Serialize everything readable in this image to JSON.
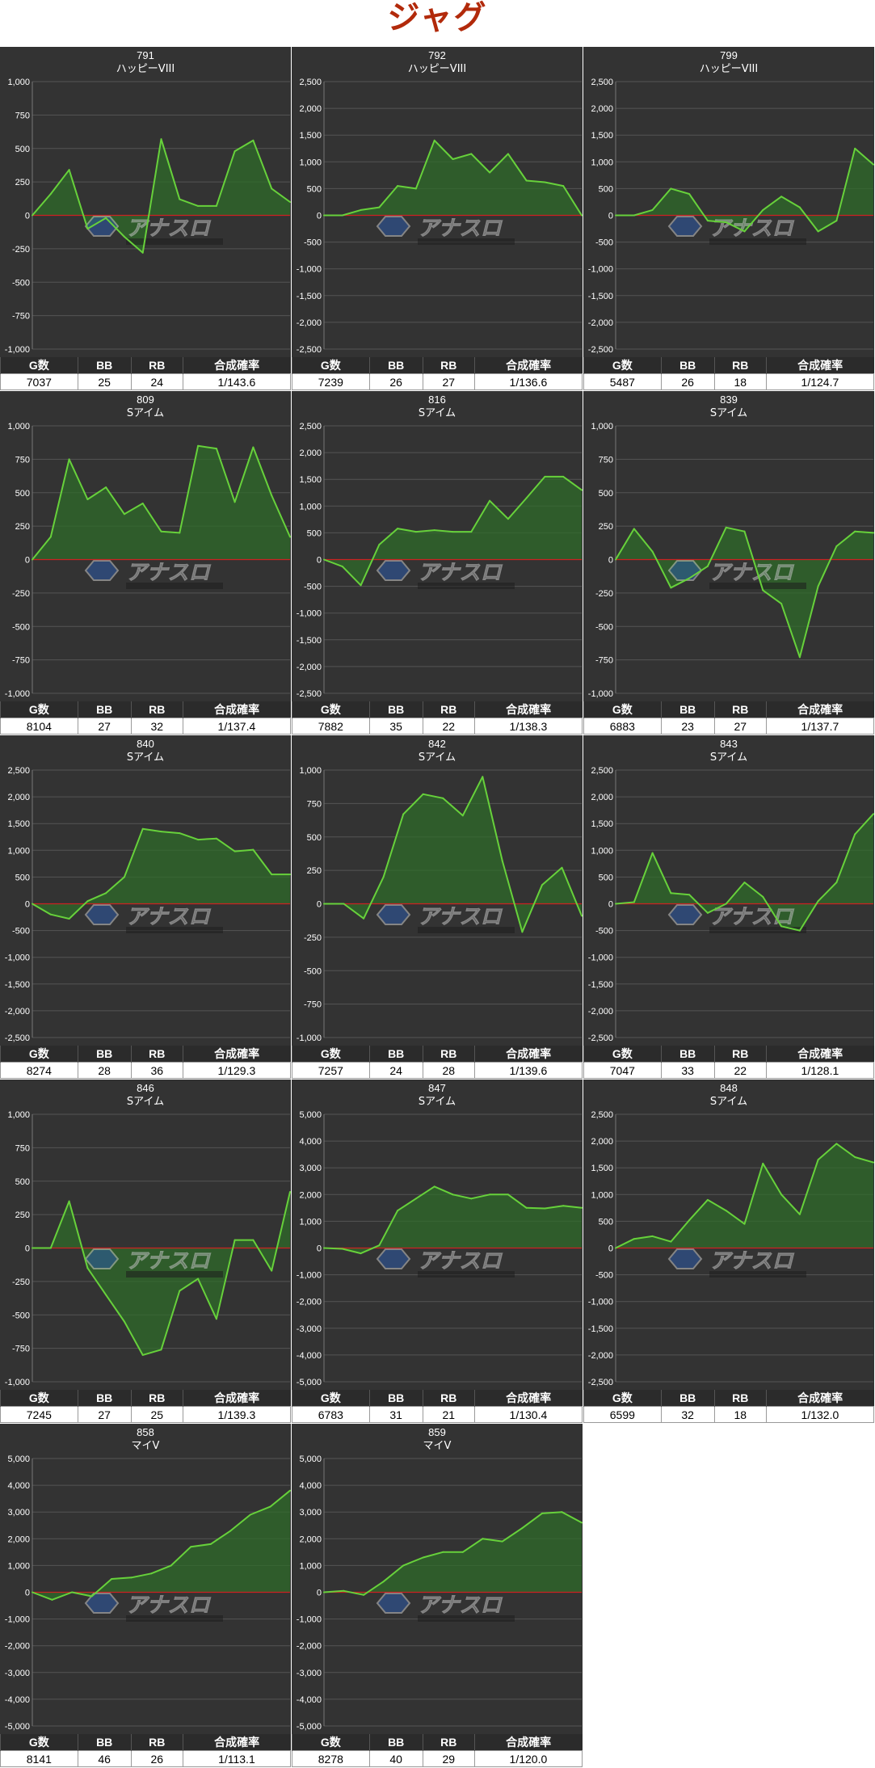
{
  "page_title": "ジャグ",
  "table_headers": [
    "G数",
    "BB",
    "RB",
    "合成確率"
  ],
  "colors": {
    "plot_bg": "#333333",
    "line": "#67d13b",
    "fill": "#2f6b2a",
    "zero_line": "#cc2222",
    "grid": "#555555"
  },
  "chart_data": [
    {
      "type": "area",
      "title": "791",
      "subtitle": "ハッピーVIII",
      "ylim": [
        -1000,
        1000
      ],
      "ytick_step": 250,
      "values": [
        0,
        160,
        340,
        -100,
        -20,
        -160,
        -280,
        570,
        120,
        70,
        70,
        480,
        560,
        200,
        100
      ],
      "stats": [
        "7037",
        "25",
        "24",
        "1/143.6"
      ]
    },
    {
      "type": "area",
      "title": "792",
      "subtitle": "ハッピーVIII",
      "ylim": [
        -2500,
        2500
      ],
      "ytick_step": 500,
      "values": [
        0,
        0,
        100,
        150,
        550,
        500,
        1400,
        1050,
        1150,
        800,
        1150,
        650,
        620,
        550,
        0
      ],
      "stats": [
        "7239",
        "26",
        "27",
        "1/136.6"
      ]
    },
    {
      "type": "area",
      "title": "799",
      "subtitle": "ハッピーVIII",
      "ylim": [
        -2500,
        2500
      ],
      "ytick_step": 500,
      "values": [
        0,
        0,
        100,
        500,
        400,
        -100,
        -130,
        -300,
        100,
        350,
        150,
        -300,
        -100,
        1250,
        950
      ],
      "stats": [
        "5487",
        "26",
        "18",
        "1/124.7"
      ]
    },
    {
      "type": "area",
      "title": "809",
      "subtitle": "Sアイム",
      "ylim": [
        -1000,
        1000
      ],
      "ytick_step": 250,
      "values": [
        0,
        170,
        750,
        450,
        540,
        340,
        420,
        210,
        200,
        850,
        830,
        430,
        840,
        480,
        170
      ],
      "stats": [
        "8104",
        "27",
        "32",
        "1/137.4"
      ]
    },
    {
      "type": "area",
      "title": "816",
      "subtitle": "Sアイム",
      "ylim": [
        -2500,
        2500
      ],
      "ytick_step": 500,
      "values": [
        0,
        -130,
        -480,
        280,
        580,
        520,
        550,
        520,
        520,
        1100,
        760,
        1150,
        1550,
        1550,
        1300
      ],
      "stats": [
        "7882",
        "35",
        "22",
        "1/138.3"
      ]
    },
    {
      "type": "area",
      "title": "839",
      "subtitle": "Sアイム",
      "ylim": [
        -1000,
        1000
      ],
      "ytick_step": 250,
      "values": [
        0,
        230,
        60,
        -210,
        -140,
        -50,
        240,
        210,
        -230,
        -330,
        -730,
        -200,
        100,
        210,
        200
      ],
      "stats": [
        "6883",
        "23",
        "27",
        "1/137.7"
      ]
    },
    {
      "type": "area",
      "title": "840",
      "subtitle": "Sアイム",
      "ylim": [
        -2500,
        2500
      ],
      "ytick_step": 500,
      "values": [
        0,
        -200,
        -280,
        50,
        200,
        500,
        1400,
        1350,
        1320,
        1200,
        1220,
        980,
        1010,
        550,
        550
      ],
      "stats": [
        "8274",
        "28",
        "36",
        "1/129.3"
      ]
    },
    {
      "type": "area",
      "title": "842",
      "subtitle": "Sアイム",
      "ylim": [
        -1000,
        1000
      ],
      "ytick_step": 250,
      "values": [
        0,
        0,
        -110,
        200,
        670,
        820,
        790,
        660,
        950,
        320,
        -210,
        140,
        270,
        -90
      ],
      "stats": [
        "7257",
        "24",
        "28",
        "1/139.6"
      ]
    },
    {
      "type": "area",
      "title": "843",
      "subtitle": "Sアイム",
      "ylim": [
        -2500,
        2500
      ],
      "ytick_step": 500,
      "values": [
        0,
        30,
        950,
        200,
        170,
        -170,
        0,
        400,
        130,
        -420,
        -500,
        50,
        400,
        1300,
        1680
      ],
      "stats": [
        "7047",
        "33",
        "22",
        "1/128.1"
      ]
    },
    {
      "type": "area",
      "title": "846",
      "subtitle": "Sアイム",
      "ylim": [
        -1000,
        1000
      ],
      "ytick_step": 250,
      "values": [
        0,
        0,
        350,
        -150,
        -350,
        -550,
        -800,
        -760,
        -320,
        -230,
        -530,
        60,
        60,
        -170,
        420
      ],
      "stats": [
        "7245",
        "27",
        "25",
        "1/139.3"
      ]
    },
    {
      "type": "area",
      "title": "847",
      "subtitle": "Sアイム",
      "ylim": [
        -5000,
        5000
      ],
      "ytick_step": 1000,
      "values": [
        0,
        -30,
        -200,
        100,
        1400,
        1850,
        2300,
        2000,
        1850,
        2000,
        2000,
        1500,
        1480,
        1580,
        1500
      ],
      "stats": [
        "6783",
        "31",
        "21",
        "1/130.4"
      ]
    },
    {
      "type": "area",
      "title": "848",
      "subtitle": "Sアイム",
      "ylim": [
        -2500,
        2500
      ],
      "ytick_step": 500,
      "values": [
        0,
        170,
        220,
        120,
        520,
        900,
        700,
        450,
        1580,
        1000,
        630,
        1650,
        1950,
        1700,
        1600
      ],
      "stats": [
        "6599",
        "32",
        "18",
        "1/132.0"
      ]
    },
    {
      "type": "area",
      "title": "858",
      "subtitle": "マイV",
      "ylim": [
        -5000,
        5000
      ],
      "ytick_step": 1000,
      "values": [
        0,
        -280,
        0,
        -150,
        500,
        550,
        700,
        1000,
        1700,
        1800,
        2300,
        2900,
        3200,
        3800
      ],
      "stats": [
        "8141",
        "46",
        "26",
        "1/113.1"
      ]
    },
    {
      "type": "area",
      "title": "859",
      "subtitle": "マイV",
      "ylim": [
        -5000,
        5000
      ],
      "ytick_step": 1000,
      "values": [
        0,
        50,
        -100,
        400,
        1000,
        1300,
        1500,
        1500,
        2000,
        1900,
        2400,
        2950,
        3000,
        2600
      ],
      "stats": [
        "8278",
        "40",
        "29",
        "1/120.0"
      ]
    }
  ]
}
